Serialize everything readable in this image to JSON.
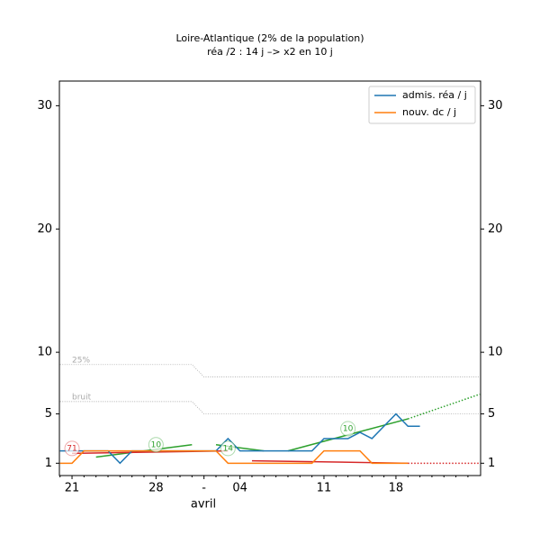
{
  "chart_data": {
    "type": "line",
    "title": "Loire-Atlantique (2% de la population)",
    "subtitle": "réa /2 : 14 j –> x2 en 10 j",
    "x_label": "avril",
    "categories": [
      null,
      "21",
      null,
      null,
      null,
      null,
      null,
      null,
      "28",
      null,
      null,
      null,
      "-",
      null,
      null,
      "04",
      null,
      null,
      null,
      null,
      null,
      null,
      "11",
      null,
      null,
      null,
      null,
      null,
      "18",
      null,
      null,
      null,
      null,
      null,
      null
    ],
    "series": [
      {
        "name": "admis. réa / j",
        "color": "#1f77b4",
        "values": [
          2,
          2,
          2,
          2,
          2,
          1,
          2,
          2,
          2,
          2,
          2,
          2,
          2,
          2,
          3,
          2,
          2,
          2,
          2,
          2,
          2,
          2,
          3,
          3,
          3,
          3.5,
          3,
          4,
          5,
          4,
          4,
          null,
          null,
          null,
          null
        ]
      },
      {
        "name": "nouv. dc / j",
        "color": "#ff7f0e",
        "values": [
          1,
          1,
          2,
          2,
          2,
          2,
          2,
          2,
          2,
          2,
          2,
          2,
          2,
          2,
          1,
          1,
          1,
          1,
          1,
          1,
          1,
          1,
          2,
          2,
          2,
          2,
          1,
          1,
          1,
          1,
          null,
          null,
          null,
          null,
          null
        ]
      }
    ],
    "trends": [
      {
        "color": "#2ca02c",
        "x": [
          3,
          11
        ],
        "values": [
          1.5,
          2.5
        ]
      },
      {
        "color": "#2ca02c",
        "x": [
          13,
          17
        ],
        "values": [
          2.5,
          2
        ]
      },
      {
        "color": "#2ca02c",
        "x": [
          19,
          29
        ],
        "values": [
          2,
          4.6
        ]
      },
      {
        "color": "#2ca02c",
        "dotted": true,
        "x": [
          29,
          35
        ],
        "values": [
          4.6,
          6.6
        ]
      },
      {
        "color": "#d62728",
        "x": [
          1,
          14
        ],
        "values": [
          1.8,
          2
        ]
      },
      {
        "color": "#d62728",
        "x": [
          16,
          29
        ],
        "values": [
          1.2,
          1
        ]
      },
      {
        "color": "#d62728",
        "dotted": true,
        "x": [
          29,
          35
        ],
        "values": [
          1,
          1
        ]
      }
    ],
    "reference_lines": [
      {
        "label": "25%",
        "x": [
          0,
          11,
          12,
          35
        ],
        "values": [
          9,
          9,
          8,
          8
        ]
      },
      {
        "label": "bruit",
        "x": [
          0,
          11,
          12,
          35
        ],
        "values": [
          6,
          6,
          5,
          5
        ]
      }
    ],
    "annotations": [
      {
        "label": "71",
        "color": "#d62728",
        "x": 1,
        "y": 2.2
      },
      {
        "label": "10",
        "color": "#2ca02c",
        "x": 8,
        "y": 2.5
      },
      {
        "label": "14",
        "color": "#2ca02c",
        "x": 14,
        "y": 2.2
      },
      {
        "label": "10",
        "color": "#2ca02c",
        "x": 24,
        "y": 3.8
      }
    ],
    "ylim": [
      0,
      32
    ],
    "yticks": [
      1,
      5,
      10,
      20,
      30
    ],
    "legend": "upper right"
  }
}
